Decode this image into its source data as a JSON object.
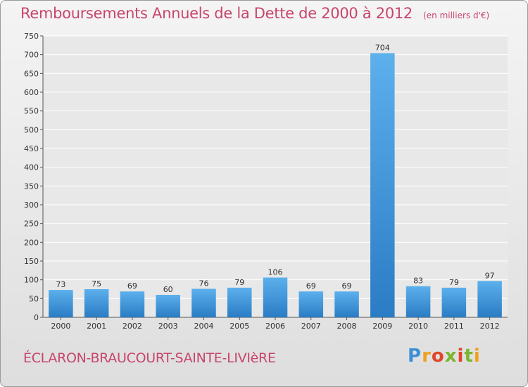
{
  "title": "Remboursements Annuels de la Dette de 2000 à 2012",
  "unit_label": "(en milliers d'€)",
  "commune": "ÉCLARON-BRAUCOURT-SAINTE-LIVIèRE",
  "logo": {
    "text": "Proxiti",
    "colors": [
      "#3d8fd6",
      "#f0a020",
      "#e2452b",
      "#7ab62f"
    ]
  },
  "chart_data": {
    "type": "bar",
    "title": "Remboursements Annuels de la Dette de 2000 à 2012",
    "xlabel": "",
    "ylabel": "",
    "categories": [
      "2000",
      "2001",
      "2002",
      "2003",
      "2004",
      "2005",
      "2006",
      "2007",
      "2008",
      "2009",
      "2010",
      "2011",
      "2012"
    ],
    "values": [
      73,
      75,
      69,
      60,
      76,
      79,
      106,
      69,
      69,
      704,
      83,
      79,
      97
    ],
    "ylim": [
      0,
      750
    ],
    "yticks": [
      0,
      50,
      100,
      150,
      200,
      250,
      300,
      350,
      400,
      450,
      500,
      550,
      600,
      650,
      700,
      750
    ],
    "grid": true,
    "bar_color": "#3b95dd",
    "title_color": "#c8456b"
  }
}
